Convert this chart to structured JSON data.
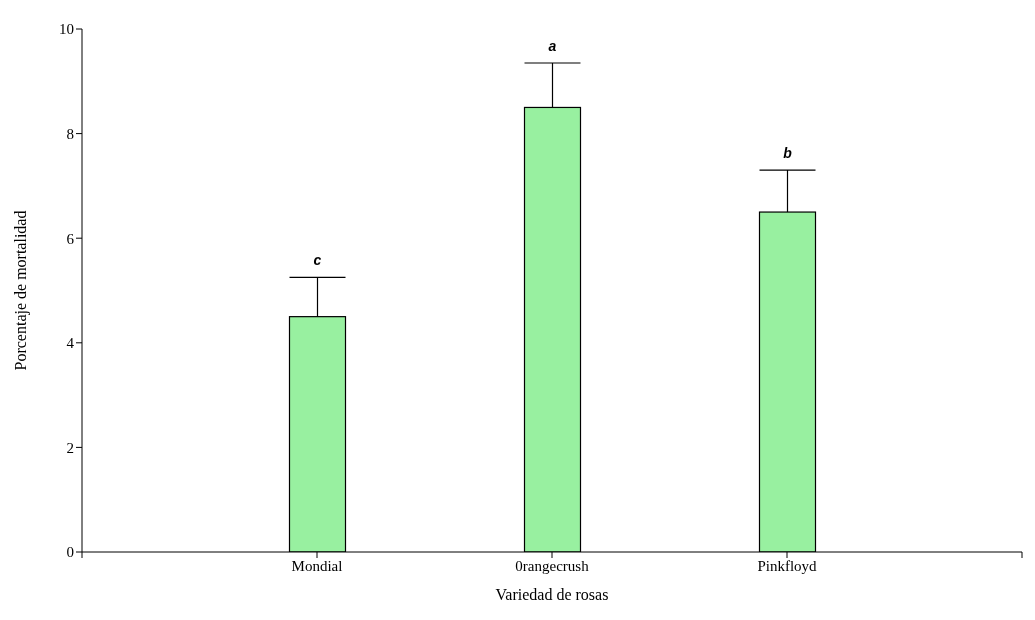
{
  "chart_data": {
    "type": "bar",
    "xlabel": "Variedad de rosas",
    "ylabel": "Porcentaje de mortalidad",
    "categories": [
      "Mondial",
      "0rangecrush",
      "Pinkfloyd"
    ],
    "values": [
      4.5,
      8.5,
      6.5
    ],
    "errors": [
      0.75,
      0.85,
      0.8
    ],
    "color": "#98f0a0",
    "ylim": [
      0,
      10
    ],
    "yticks": [
      0,
      2,
      4,
      6,
      8,
      10
    ],
    "grid": false,
    "legend": false,
    "annotations": [
      "c",
      "a",
      "b"
    ]
  }
}
